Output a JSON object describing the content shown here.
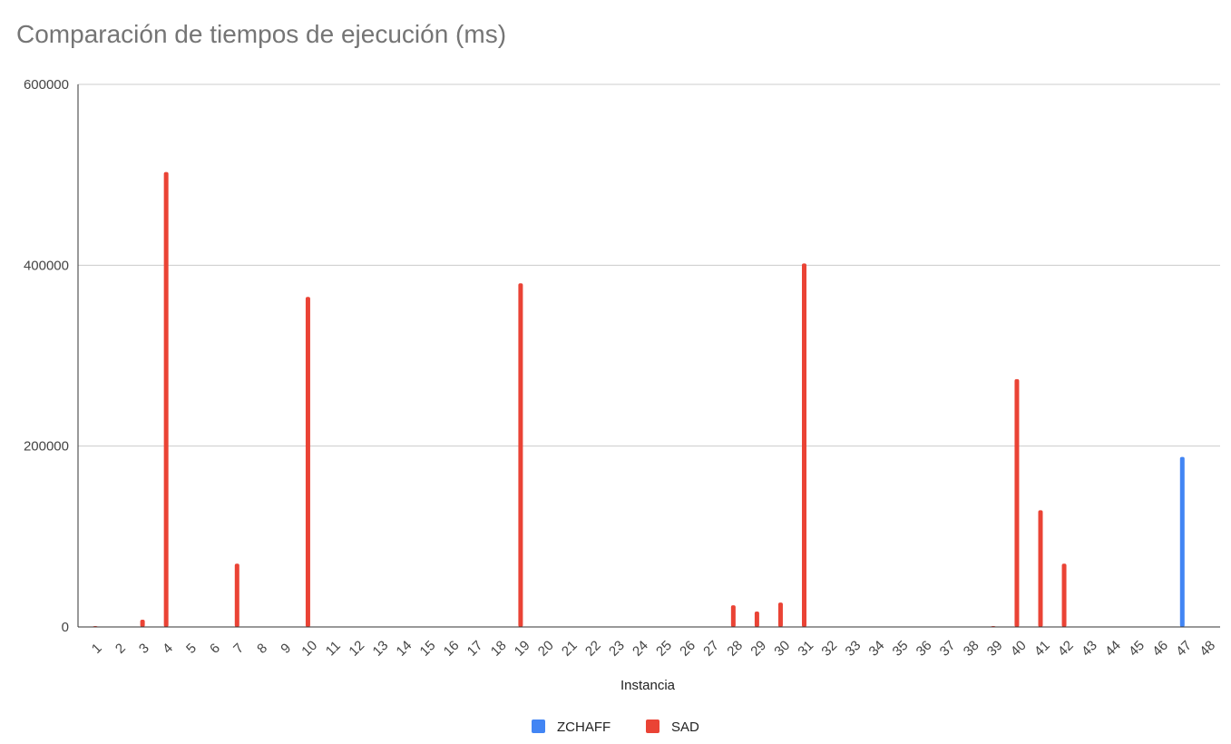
{
  "chart_data": {
    "type": "bar",
    "title": "Comparación de tiempos de ejecución (ms)",
    "xlabel": "Instancia",
    "ylabel": "",
    "ylim": [
      0,
      600000
    ],
    "yticks": [
      "0",
      "200000",
      "400000",
      "600000"
    ],
    "grid": true,
    "legend_position": "bottom",
    "categories": [
      "1",
      "2",
      "3",
      "4",
      "5",
      "6",
      "7",
      "8",
      "9",
      "10",
      "11",
      "12",
      "13",
      "14",
      "15",
      "16",
      "17",
      "18",
      "19",
      "20",
      "21",
      "22",
      "23",
      "24",
      "25",
      "26",
      "27",
      "28",
      "29",
      "30",
      "31",
      "32",
      "33",
      "34",
      "35",
      "36",
      "37",
      "38",
      "39",
      "40",
      "41",
      "42",
      "43",
      "44",
      "45",
      "46",
      "47",
      "48"
    ],
    "series": [
      {
        "name": "ZCHAFF",
        "color": "#4285f4",
        "values": [
          0,
          0,
          0,
          0,
          0,
          0,
          0,
          0,
          0,
          0,
          0,
          0,
          0,
          0,
          0,
          0,
          0,
          0,
          0,
          0,
          0,
          0,
          0,
          0,
          0,
          0,
          0,
          0,
          0,
          0,
          0,
          0,
          0,
          0,
          0,
          0,
          0,
          0,
          0,
          0,
          0,
          0,
          0,
          0,
          0,
          0,
          188000,
          0
        ]
      },
      {
        "name": "SAD",
        "color": "#ea4335",
        "values": [
          1000,
          0,
          8000,
          503000,
          0,
          0,
          70000,
          0,
          0,
          365000,
          0,
          0,
          0,
          0,
          0,
          0,
          0,
          0,
          380000,
          0,
          0,
          0,
          0,
          0,
          0,
          0,
          0,
          24000,
          17000,
          27000,
          402000,
          0,
          0,
          0,
          0,
          0,
          0,
          0,
          1000,
          274000,
          129000,
          70000,
          0,
          0,
          0,
          0,
          0,
          0
        ]
      }
    ]
  }
}
